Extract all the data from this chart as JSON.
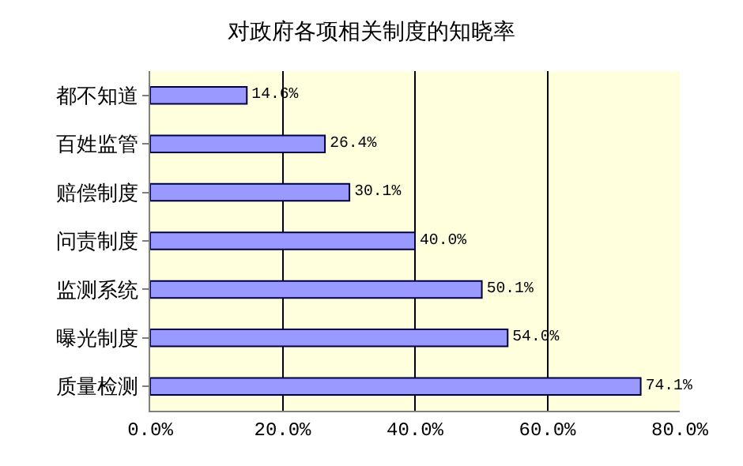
{
  "chart_data": {
    "type": "bar",
    "orientation": "horizontal",
    "title": "对政府各项相关制度的知晓率",
    "categories": [
      "都不知道",
      "百姓监管",
      "赔偿制度",
      "问责制度",
      "监测系统",
      "曝光制度",
      "质量检测"
    ],
    "values": [
      14.6,
      26.4,
      30.1,
      40.0,
      50.1,
      54.0,
      74.1
    ],
    "value_labels": [
      "14.6%",
      "26.4%",
      "30.1%",
      "40.0%",
      "50.1%",
      "54.0%",
      "74.1%"
    ],
    "color": "#9999ff",
    "xlim": [
      0,
      80
    ],
    "xticks": [
      {
        "value": 0,
        "label": "0.0%"
      },
      {
        "value": 20,
        "label": "20.0%"
      },
      {
        "value": 40,
        "label": "40.0%"
      },
      {
        "value": 60,
        "label": "60.0%"
      },
      {
        "value": 80,
        "label": "80.0%"
      }
    ],
    "grid": "x",
    "legend": false
  }
}
